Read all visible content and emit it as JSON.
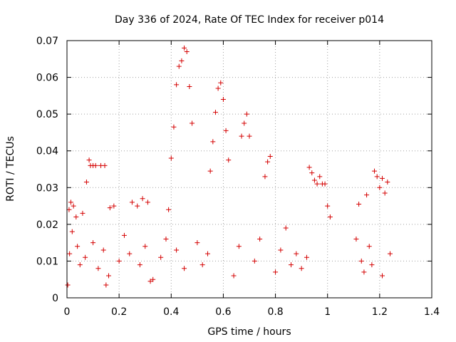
{
  "chart_data": {
    "type": "scatter",
    "title": "Day 336 of 2024, Rate Of TEC Index for receiver p014",
    "xlabel": "GPS time / hours",
    "ylabel": "ROTI / TECUs",
    "xlim": [
      0,
      1.4
    ],
    "ylim": [
      0,
      0.07
    ],
    "x_ticks": [
      0,
      0.2,
      0.4,
      0.6,
      0.8,
      1,
      1.2,
      1.4
    ],
    "x_tick_labels": [
      "0",
      "0.2",
      "0.4",
      "0.6",
      "0.8",
      "1",
      "1.2",
      "1.4"
    ],
    "y_ticks": [
      0,
      0.01,
      0.02,
      0.03,
      0.04,
      0.05,
      0.06,
      0.07
    ],
    "y_tick_labels": [
      "0",
      "0.01",
      "0.02",
      "0.03",
      "0.04",
      "0.05",
      "0.06",
      "0.07"
    ],
    "grid": true,
    "marker": "+",
    "marker_color": "#d40000",
    "series": [
      {
        "name": "ROTI",
        "x": [
          0.003,
          0.008,
          0.015,
          0.025,
          0.035,
          0.06,
          0.075,
          0.085,
          0.09,
          0.1,
          0.11,
          0.13,
          0.145,
          0.15,
          0.165,
          0.18,
          0.25,
          0.27,
          0.29,
          0.31,
          0.32,
          0.39,
          0.4,
          0.41,
          0.42,
          0.43,
          0.44,
          0.45,
          0.46,
          0.47,
          0.48,
          0.55,
          0.56,
          0.57,
          0.58,
          0.59,
          0.6,
          0.61,
          0.62,
          0.67,
          0.68,
          0.69,
          0.7,
          0.76,
          0.77,
          0.78,
          0.93,
          0.94,
          0.95,
          0.96,
          0.97,
          0.98,
          0.99,
          1.0,
          1.01,
          1.12,
          1.15,
          1.18,
          1.19,
          1.2,
          1.21,
          1.22,
          1.23,
          0.01,
          0.02,
          0.04,
          0.05,
          0.07,
          0.1,
          0.12,
          0.14,
          0.16,
          0.2,
          0.22,
          0.24,
          0.28,
          0.3,
          0.33,
          0.36,
          0.38,
          0.42,
          0.45,
          0.5,
          0.52,
          0.54,
          0.64,
          0.66,
          0.72,
          0.74,
          0.8,
          0.82,
          0.84,
          0.86,
          0.88,
          0.9,
          0.92,
          1.11,
          1.13,
          1.14,
          1.16,
          1.17,
          1.21,
          1.24
        ],
        "y": [
          0.0035,
          0.024,
          0.026,
          0.025,
          0.022,
          0.023,
          0.0315,
          0.0375,
          0.036,
          0.036,
          0.036,
          0.036,
          0.036,
          0.0035,
          0.0245,
          0.025,
          0.026,
          0.025,
          0.027,
          0.026,
          0.0045,
          0.024,
          0.038,
          0.0465,
          0.058,
          0.063,
          0.0645,
          0.068,
          0.067,
          0.0575,
          0.0475,
          0.0345,
          0.0425,
          0.0505,
          0.057,
          0.0585,
          0.054,
          0.0455,
          0.0375,
          0.044,
          0.0475,
          0.05,
          0.044,
          0.033,
          0.037,
          0.0385,
          0.0355,
          0.034,
          0.032,
          0.031,
          0.033,
          0.031,
          0.031,
          0.025,
          0.022,
          0.0255,
          0.028,
          0.0345,
          0.033,
          0.03,
          0.0325,
          0.0285,
          0.0315,
          0.012,
          0.018,
          0.014,
          0.009,
          0.011,
          0.015,
          0.008,
          0.013,
          0.006,
          0.01,
          0.017,
          0.012,
          0.009,
          0.014,
          0.005,
          0.011,
          0.016,
          0.013,
          0.008,
          0.015,
          0.009,
          0.012,
          0.006,
          0.014,
          0.01,
          0.016,
          0.007,
          0.013,
          0.019,
          0.009,
          0.012,
          0.008,
          0.011,
          0.016,
          0.01,
          0.007,
          0.014,
          0.009,
          0.006,
          0.012
        ]
      }
    ]
  }
}
